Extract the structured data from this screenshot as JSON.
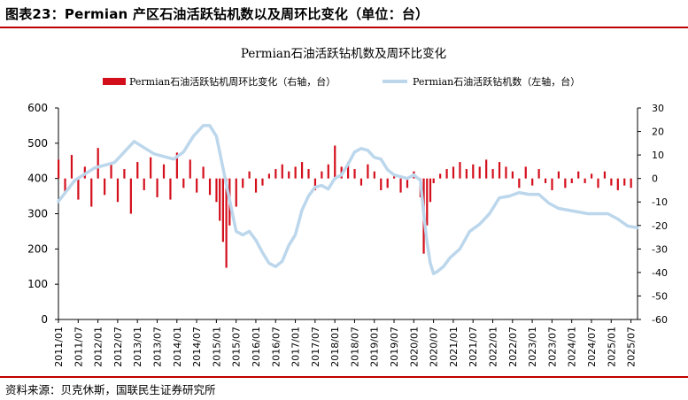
{
  "header": {
    "figure_title": "图表23：Permian 产区石油活跃钻机数以及周环比变化（单位：台）"
  },
  "footer": {
    "source": "资料来源：贝克休斯，国联民生证券研究所"
  },
  "colors": {
    "bar": "#d40f1c",
    "line": "#bcd7ec",
    "rule": "#c00000",
    "axis": "#000000"
  },
  "chart_data": {
    "type": "bar+line",
    "title": "Permian石油活跃钻机数及周环比变化",
    "legend_position": "top",
    "grid": false,
    "series": [
      {
        "name": "Permian石油活跃钻机周环比变化（右轴，台）",
        "type": "bar",
        "axis": "right",
        "x": [
          "2011/01",
          "2011/03",
          "2011/05",
          "2011/07",
          "2011/09",
          "2011/11",
          "2012/01",
          "2012/03",
          "2012/05",
          "2012/07",
          "2012/09",
          "2012/11",
          "2013/01",
          "2013/03",
          "2013/05",
          "2013/07",
          "2013/09",
          "2013/11",
          "2014/01",
          "2014/03",
          "2014/05",
          "2014/07",
          "2014/09",
          "2014/11",
          "2015/01",
          "2015/02",
          "2015/03",
          "2015/04",
          "2015/05",
          "2015/07",
          "2015/09",
          "2015/11",
          "2016/01",
          "2016/03",
          "2016/05",
          "2016/07",
          "2016/09",
          "2016/11",
          "2017/01",
          "2017/03",
          "2017/05",
          "2017/07",
          "2017/09",
          "2017/11",
          "2018/01",
          "2018/03",
          "2018/05",
          "2018/07",
          "2018/09",
          "2018/11",
          "2019/01",
          "2019/03",
          "2019/05",
          "2019/07",
          "2019/09",
          "2019/11",
          "2020/01",
          "2020/03",
          "2020/04",
          "2020/05",
          "2020/06",
          "2020/07",
          "2020/09",
          "2020/11",
          "2021/01",
          "2021/03",
          "2021/05",
          "2021/07",
          "2021/09",
          "2021/11",
          "2022/01",
          "2022/03",
          "2022/05",
          "2022/07",
          "2022/09",
          "2022/11",
          "2023/01",
          "2023/03",
          "2023/05",
          "2023/07",
          "2023/09",
          "2023/11",
          "2024/01",
          "2024/03",
          "2024/05",
          "2024/07",
          "2024/09",
          "2024/11",
          "2025/01",
          "2025/03",
          "2025/05",
          "2025/07"
        ],
        "values": [
          8,
          -6,
          10,
          -9,
          5,
          -12,
          13,
          -7,
          6,
          -10,
          4,
          -15,
          7,
          -5,
          9,
          -8,
          6,
          -9,
          11,
          -4,
          8,
          -6,
          5,
          -7,
          -10,
          -18,
          -27,
          -38,
          -20,
          -12,
          -4,
          3,
          -6,
          -3,
          2,
          4,
          6,
          3,
          5,
          7,
          4,
          -5,
          3,
          6,
          14,
          5,
          7,
          4,
          -3,
          6,
          3,
          -5,
          -4,
          2,
          -6,
          -4,
          3,
          -8,
          -32,
          -20,
          -10,
          -2,
          2,
          4,
          5,
          7,
          4,
          6,
          5,
          8,
          4,
          7,
          5,
          3,
          -4,
          5,
          -3,
          4,
          -2,
          -5,
          3,
          -4,
          -2,
          3,
          -2,
          2,
          -4,
          3,
          -3,
          -5,
          -3,
          -4
        ],
        "ylim": [
          -60,
          30
        ]
      },
      {
        "name": "Permian石油活跃钻机数（左轴，台）",
        "type": "line",
        "axis": "left",
        "x": [
          "2011/01",
          "2011/06",
          "2011/12",
          "2012/06",
          "2012/12",
          "2013/06",
          "2013/12",
          "2014/03",
          "2014/06",
          "2014/09",
          "2014/11",
          "2015/01",
          "2015/03",
          "2015/05",
          "2015/07",
          "2015/09",
          "2015/11",
          "2016/01",
          "2016/03",
          "2016/05",
          "2016/07",
          "2016/09",
          "2016/11",
          "2017/01",
          "2017/03",
          "2017/05",
          "2017/07",
          "2017/09",
          "2017/11",
          "2018/01",
          "2018/03",
          "2018/05",
          "2018/07",
          "2018/09",
          "2018/11",
          "2019/01",
          "2019/03",
          "2019/05",
          "2019/07",
          "2019/09",
          "2019/11",
          "2020/01",
          "2020/03",
          "2020/04",
          "2020/05",
          "2020/06",
          "2020/07",
          "2020/08",
          "2020/10",
          "2020/12",
          "2021/03",
          "2021/06",
          "2021/09",
          "2021/12",
          "2022/03",
          "2022/06",
          "2022/09",
          "2022/12",
          "2023/03",
          "2023/06",
          "2023/09",
          "2023/12",
          "2024/03",
          "2024/06",
          "2024/09",
          "2024/12",
          "2025/03",
          "2025/06",
          "2025/09"
        ],
        "values": [
          335,
          395,
          430,
          445,
          505,
          470,
          455,
          475,
          520,
          550,
          550,
          520,
          430,
          340,
          250,
          240,
          250,
          225,
          190,
          160,
          150,
          165,
          210,
          240,
          310,
          350,
          375,
          380,
          370,
          400,
          410,
          440,
          475,
          485,
          480,
          460,
          455,
          425,
          410,
          405,
          400,
          410,
          395,
          300,
          220,
          160,
          130,
          135,
          150,
          175,
          200,
          250,
          270,
          300,
          345,
          350,
          360,
          355,
          355,
          330,
          315,
          310,
          305,
          300,
          300,
          300,
          285,
          265,
          260
        ],
        "ylim": [
          0,
          600
        ]
      }
    ],
    "left_axis": {
      "ticks": [
        "0",
        "100",
        "200",
        "300",
        "400",
        "500",
        "600"
      ]
    },
    "right_axis": {
      "ticks": [
        "30",
        "20",
        "10",
        "0",
        "-10",
        "-20",
        "-30",
        "-40",
        "-50",
        "-60"
      ]
    },
    "x_ticks": [
      "2011/01",
      "2011/07",
      "2012/01",
      "2012/07",
      "2013/01",
      "2013/07",
      "2014/01",
      "2014/07",
      "2015/01",
      "2015/07",
      "2016/01",
      "2016/07",
      "2017/01",
      "2017/07",
      "2018/01",
      "2018/07",
      "2019/01",
      "2019/07",
      "2020/01",
      "2020/07",
      "2021/01",
      "2021/07",
      "2022/01",
      "2022/07",
      "2023/01",
      "2023/07",
      "2024/01",
      "2024/07",
      "2025/01",
      "2025/07"
    ]
  }
}
